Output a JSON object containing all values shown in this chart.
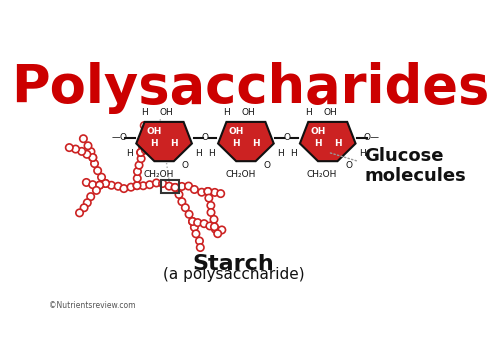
{
  "title": "Polysaccharides",
  "title_color": "#cc0000",
  "title_fontsize": 38,
  "bg_color": "#ffffff",
  "ring_fill": "#cc2222",
  "ring_edge": "#111111",
  "label_color": "#111111",
  "glucose_label": "Glucose\nmolecules",
  "starch_label": "Starch",
  "starch_sub": "(a polysaccharide)",
  "starch_label_color": "#111111",
  "copyright": "©Nutrientsreview.com",
  "line_color": "#888888",
  "annotation_box_color": "#333333",
  "circle_color": "#cc2222",
  "circle_edge": "#cc2222"
}
